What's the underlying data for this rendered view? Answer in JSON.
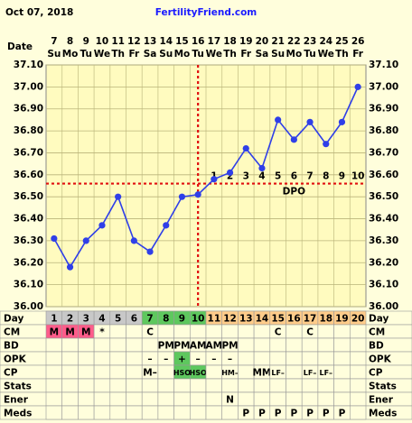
{
  "header": {
    "date": "Oct 07, 2018",
    "site": "FertilityFriend.com"
  },
  "chart_data": {
    "type": "line",
    "x_label": "Date",
    "categories": [
      "7",
      "8",
      "9",
      "10",
      "11",
      "12",
      "13",
      "14",
      "15",
      "16",
      "17",
      "18",
      "19",
      "20",
      "21",
      "22",
      "23",
      "24",
      "25",
      "26"
    ],
    "weekdays": [
      "Su",
      "Mo",
      "Tu",
      "We",
      "Th",
      "Fr",
      "Sa",
      "Su",
      "Mo",
      "Tu",
      "We",
      "Th",
      "Fr",
      "Sa",
      "Su",
      "Mo",
      "Tu",
      "We",
      "Th",
      "Fr"
    ],
    "values": [
      36.31,
      36.18,
      36.3,
      36.37,
      36.5,
      36.3,
      36.25,
      36.37,
      36.5,
      36.51,
      36.58,
      36.61,
      36.72,
      36.63,
      36.85,
      36.76,
      36.84,
      36.74,
      36.84,
      37.0
    ],
    "color": "#2f3fe8",
    "ylim": [
      36.0,
      37.1
    ],
    "yticks": [
      {
        "value": 36.0,
        "label": "36.00"
      },
      {
        "value": 36.1,
        "label": "36.10"
      },
      {
        "value": 36.2,
        "label": "36.20"
      },
      {
        "value": 36.3,
        "label": "36.30"
      },
      {
        "value": 36.4,
        "label": "36.40"
      },
      {
        "value": 36.5,
        "label": "36.50"
      },
      {
        "value": 36.6,
        "label": "36.60"
      },
      {
        "value": 36.7,
        "label": "36.70"
      },
      {
        "value": 36.8,
        "label": "36.80"
      },
      {
        "value": 36.9,
        "label": "36.90"
      },
      {
        "value": 37.0,
        "label": "37.00"
      },
      {
        "value": 37.1,
        "label": "37.10"
      }
    ],
    "grid": true,
    "coverline": 36.56,
    "dpo": [
      null,
      null,
      null,
      null,
      null,
      null,
      null,
      null,
      null,
      null,
      1,
      2,
      3,
      4,
      5,
      6,
      7,
      8,
      9,
      10
    ],
    "dpo_label": "DPO"
  },
  "table": {
    "rows": [
      {
        "label": "Day",
        "cells": [
          1,
          2,
          3,
          4,
          5,
          6,
          7,
          8,
          9,
          10,
          11,
          12,
          13,
          14,
          15,
          16,
          17,
          18,
          19,
          20
        ],
        "colors": [
          "#c8c8c8",
          "#c8c8c8",
          "#c8c8c8",
          "#c8c8c8",
          "#c8c8c8",
          "#c8c8c8",
          "#5ec85e",
          "#5ec85e",
          "#5ec85e",
          "#5ec85e",
          "#ffcc8a",
          "#ffcc8a",
          "#ffcc8a",
          "#ffcc8a",
          "#ffcc8a",
          "#ffcc8a",
          "#ffcc8a",
          "#ffcc8a",
          "#ffcc8a",
          "#ffcc8a"
        ]
      },
      {
        "label": "CM",
        "cells": [
          "M",
          "M",
          "M",
          "*",
          null,
          null,
          "C",
          null,
          null,
          null,
          null,
          null,
          null,
          null,
          "C",
          null,
          "C",
          null,
          null,
          null
        ],
        "colors": [
          "#ff5c8a",
          "#ff5c8a",
          "#ff5c8a",
          null,
          null,
          null,
          null,
          null,
          null,
          null,
          null,
          null,
          null,
          null,
          null,
          null,
          null,
          null,
          null,
          null
        ]
      },
      {
        "label": "BD",
        "cells": [
          null,
          null,
          null,
          null,
          null,
          null,
          null,
          "PM",
          "PM",
          "AM",
          "AM",
          "PM",
          null,
          null,
          null,
          null,
          null,
          null,
          null,
          null
        ]
      },
      {
        "label": "OPK",
        "cells": [
          null,
          null,
          null,
          null,
          null,
          null,
          "–",
          "–",
          "+",
          "–",
          "–",
          "–",
          null,
          null,
          null,
          null,
          null,
          null,
          null,
          null
        ],
        "colors": [
          null,
          null,
          null,
          null,
          null,
          null,
          null,
          null,
          "#5ec85e",
          null,
          null,
          null,
          null,
          null,
          null,
          null,
          null,
          null,
          null,
          null
        ]
      },
      {
        "label": "CP",
        "cells": [
          null,
          null,
          null,
          null,
          null,
          null,
          "M–",
          null,
          "HSO",
          "HSO",
          null,
          "HM–",
          null,
          "MM",
          "LF–",
          null,
          "LF–",
          "LF–",
          null,
          null
        ],
        "colors": [
          null,
          null,
          null,
          null,
          null,
          null,
          null,
          null,
          "#5ec85e",
          "#5ec85e",
          null,
          null,
          null,
          null,
          null,
          null,
          null,
          null,
          null,
          null
        ]
      },
      {
        "label": "Stats",
        "cells": [
          null,
          null,
          null,
          null,
          null,
          null,
          null,
          null,
          null,
          null,
          null,
          null,
          null,
          null,
          null,
          null,
          null,
          null,
          null,
          null
        ]
      },
      {
        "label": "Ener",
        "cells": [
          null,
          null,
          null,
          null,
          null,
          null,
          null,
          null,
          null,
          null,
          null,
          "N",
          null,
          null,
          null,
          null,
          null,
          null,
          null,
          null
        ]
      },
      {
        "label": "Meds",
        "cells": [
          null,
          null,
          null,
          null,
          null,
          null,
          null,
          null,
          null,
          null,
          null,
          null,
          "P",
          "P",
          "P",
          "P",
          "P",
          "P",
          "P",
          null
        ]
      }
    ]
  }
}
